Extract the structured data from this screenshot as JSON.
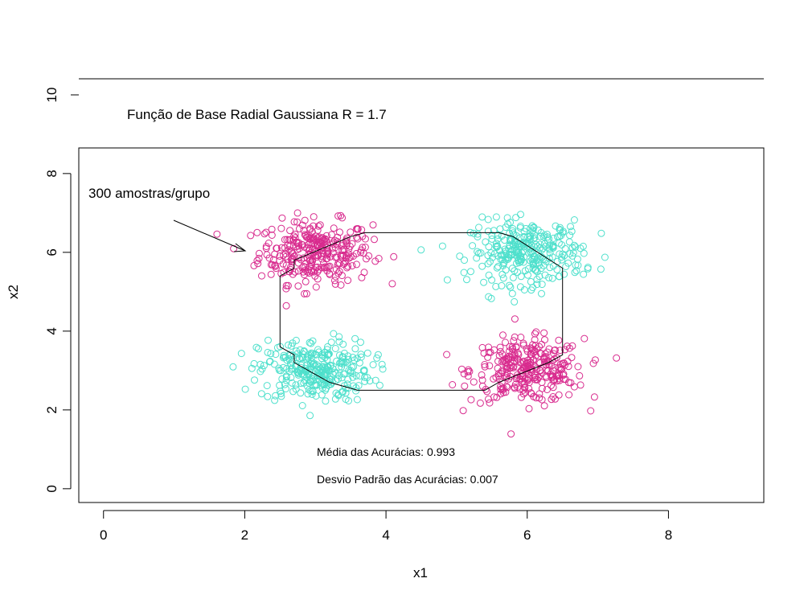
{
  "chart_data": {
    "type": "scatter",
    "xlabel": "x1",
    "ylabel": "x2",
    "xlim": [
      -0.35,
      9.35
    ],
    "ylim": [
      -0.35,
      8.65
    ],
    "x_ticks": [
      0,
      2,
      4,
      6,
      8
    ],
    "y_ticks": [
      0,
      2,
      4,
      6,
      8
    ],
    "y_ticks_upper": [
      10
    ],
    "grid": false,
    "annotations": {
      "title": "Função de Base Radial Gaussiana R = 1.7",
      "samples": "300 amostras/grupo",
      "mean_acc": "Média das Acurácias: 0.993",
      "std_acc": "Desvio Padrão das Acurácias: 0.007"
    },
    "series": [
      {
        "color": "#d82b8e",
        "center": [
          3.0,
          6.0
        ],
        "spread": [
          0.4,
          0.4
        ],
        "n": 300
      },
      {
        "color": "#d82b8e",
        "center": [
          6.0,
          3.0
        ],
        "spread": [
          0.4,
          0.4
        ],
        "n": 300
      },
      {
        "color": "#4fe0cc",
        "center": [
          3.0,
          3.0
        ],
        "spread": [
          0.4,
          0.4
        ],
        "n": 300
      },
      {
        "color": "#4fe0cc",
        "center": [
          6.0,
          6.0
        ],
        "spread": [
          0.4,
          0.4
        ],
        "n": 300
      }
    ],
    "decision_boundary": [
      [
        2.7,
        5.6
      ],
      [
        2.7,
        5.8
      ],
      [
        3.5,
        6.4
      ],
      [
        3.7,
        6.5
      ],
      [
        5.6,
        6.5
      ],
      [
        5.8,
        6.4
      ],
      [
        6.5,
        5.6
      ],
      [
        6.5,
        3.4
      ],
      [
        6.3,
        3.2
      ],
      [
        5.6,
        2.7
      ],
      [
        5.4,
        2.5
      ],
      [
        3.6,
        2.5
      ],
      [
        3.2,
        2.7
      ],
      [
        2.7,
        3.2
      ],
      [
        2.7,
        3.4
      ],
      [
        2.5,
        3.6
      ],
      [
        2.5,
        5.4
      ],
      [
        2.7,
        5.6
      ]
    ]
  }
}
